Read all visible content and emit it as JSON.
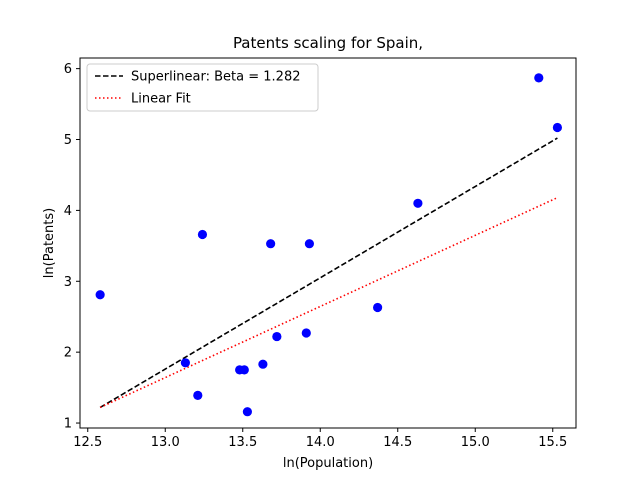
{
  "chart_data": {
    "type": "scatter",
    "title": "Patents scaling for Spain,",
    "xlabel": "ln(Population)",
    "ylabel": "ln(Patents)",
    "xlim": [
      12.45,
      15.65
    ],
    "ylim": [
      0.93,
      6.15
    ],
    "xticks": [
      12.5,
      13.0,
      13.5,
      14.0,
      14.5,
      15.0,
      15.5
    ],
    "xtick_labels": [
      "12.5",
      "13.0",
      "13.5",
      "14.0",
      "14.5",
      "15.0",
      "15.5"
    ],
    "yticks": [
      1,
      2,
      3,
      4,
      5,
      6
    ],
    "ytick_labels": [
      "1",
      "2",
      "3",
      "4",
      "5",
      "6"
    ],
    "grid": false,
    "legend_position": "top-left",
    "points": {
      "color": "#0000ff",
      "x": [
        12.58,
        13.13,
        13.21,
        13.24,
        13.48,
        13.51,
        13.53,
        13.63,
        13.68,
        13.72,
        13.91,
        13.93,
        14.37,
        14.63,
        15.41,
        15.53
      ],
      "y": [
        2.81,
        1.85,
        1.39,
        3.66,
        1.75,
        1.75,
        1.16,
        1.83,
        3.53,
        2.22,
        2.27,
        3.53,
        2.63,
        4.1,
        5.87,
        5.17
      ]
    },
    "series": [
      {
        "name": "Superlinear: Beta = 1.282",
        "style": "dashed",
        "color": "#000000",
        "x": [
          12.58,
          15.53
        ],
        "y": [
          1.22,
          5.02
        ]
      },
      {
        "name": "Linear Fit",
        "style": "dotted",
        "color": "#ff0000",
        "x": [
          12.58,
          15.53
        ],
        "y": [
          1.22,
          4.18
        ]
      }
    ]
  }
}
